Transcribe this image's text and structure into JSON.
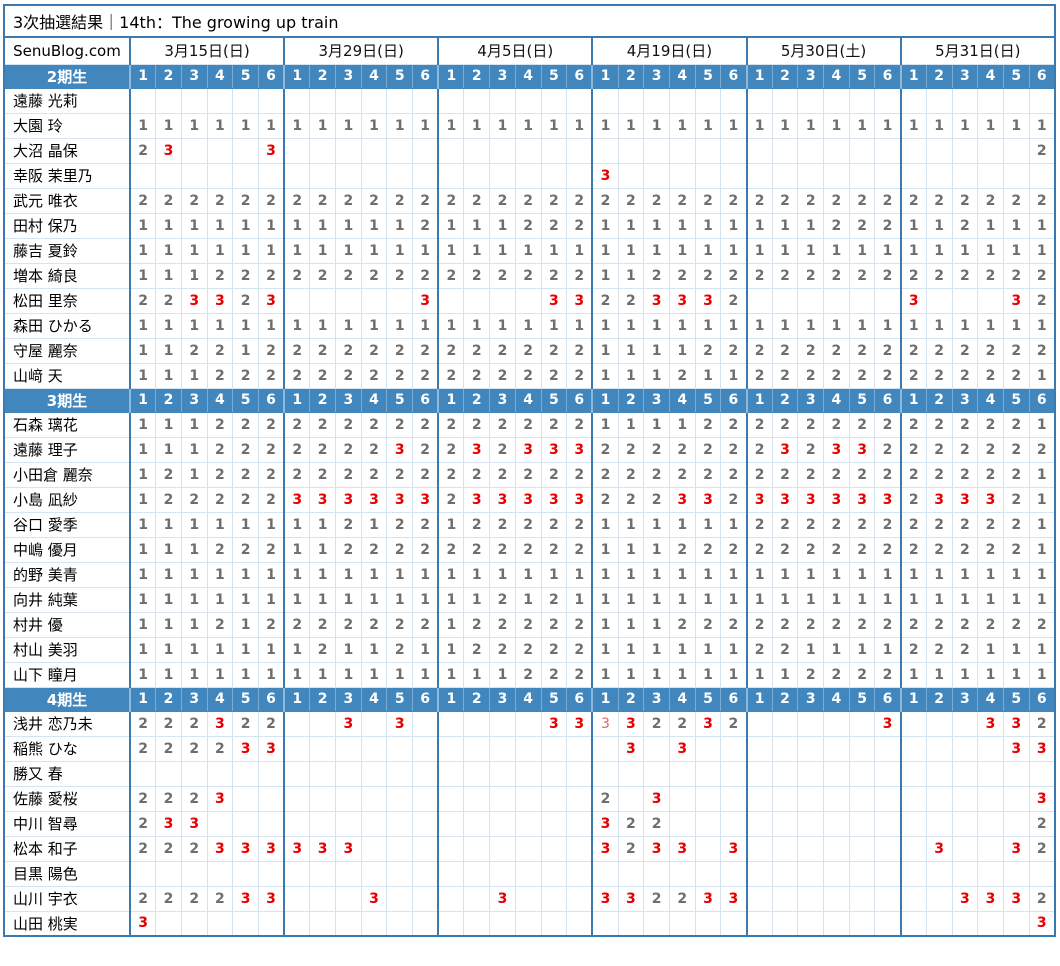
{
  "title": "3次抽選結果｜14th：The growing up train",
  "brand": "SenuBlog.com",
  "dates": [
    "3月15日(日)",
    "3月29日(日)",
    "4月5日(日)",
    "4月19日(日)",
    "5月30日(土)",
    "5月31日(日)"
  ],
  "slot_numbers": [
    "1",
    "2",
    "3",
    "4",
    "5",
    "6"
  ],
  "legend": {
    "empty": ".",
    "light_red_three": "L"
  },
  "colors": {
    "header_blue": "#4187be",
    "border_blue": "#3a7ab0",
    "gridline": "#d6e3f0",
    "number_gray": "#6e6e6e",
    "sold_out_red": "#e60000",
    "sold_out_red_light": "#e06666"
  },
  "sections": [
    {
      "label": "2期生",
      "members": [
        {
          "name": "遠藤 光莉",
          "v": [
            "......",
            "......",
            "......",
            "......",
            "......",
            "......"
          ]
        },
        {
          "name": "大園 玲",
          "v": [
            "111111",
            "111111",
            "111111",
            "111111",
            "111111",
            "111111"
          ]
        },
        {
          "name": "大沼 晶保",
          "v": [
            "23...3",
            "......",
            "......",
            "......",
            "......",
            ".....2"
          ]
        },
        {
          "name": "幸阪 茉里乃",
          "v": [
            "......",
            "......",
            "......",
            "3.....",
            "......",
            "......"
          ]
        },
        {
          "name": "武元 唯衣",
          "v": [
            "222222",
            "222222",
            "222222",
            "222222",
            "222222",
            "222222"
          ]
        },
        {
          "name": "田村 保乃",
          "v": [
            "111111",
            "111112",
            "111222",
            "111111",
            "111222",
            "112111"
          ]
        },
        {
          "name": "藤吉 夏鈴",
          "v": [
            "111111",
            "111111",
            "111111",
            "111111",
            "111111",
            "111111"
          ]
        },
        {
          "name": "増本 綺良",
          "v": [
            "111222",
            "222222",
            "222222",
            "112222",
            "222222",
            "222222"
          ]
        },
        {
          "name": "松田 里奈",
          "v": [
            "223323",
            ".....3",
            "....33",
            "223332",
            "......",
            "3...32"
          ]
        },
        {
          "name": "森田 ひかる",
          "v": [
            "111111",
            "111111",
            "111111",
            "111111",
            "111111",
            "111111"
          ]
        },
        {
          "name": "守屋 麗奈",
          "v": [
            "112212",
            "222222",
            "222222",
            "111122",
            "222222",
            "222222"
          ]
        },
        {
          "name": "山﨑 天",
          "v": [
            "111222",
            "222222",
            "222222",
            "111211",
            "222222",
            "222221"
          ]
        }
      ]
    },
    {
      "label": "3期生",
      "members": [
        {
          "name": "石森 璃花",
          "v": [
            "111222",
            "222222",
            "222222",
            "111122",
            "222222",
            "222221"
          ]
        },
        {
          "name": "遠藤 理子",
          "v": [
            "111222",
            "222232",
            "232333",
            "222222",
            "232332",
            "222222"
          ]
        },
        {
          "name": "小田倉 麗奈",
          "v": [
            "121222",
            "222222",
            "222222",
            "222222",
            "222222",
            "222221"
          ]
        },
        {
          "name": "小島 凪紗",
          "v": [
            "122222",
            "333333",
            "233333",
            "222332",
            "333333",
            "233321"
          ]
        },
        {
          "name": "谷口 愛季",
          "v": [
            "111111",
            "112122",
            "122222",
            "111111",
            "222222",
            "222221"
          ]
        },
        {
          "name": "中嶋 優月",
          "v": [
            "111222",
            "112222",
            "222222",
            "111222",
            "222222",
            "222221"
          ]
        },
        {
          "name": "的野 美青",
          "v": [
            "111111",
            "111111",
            "111111",
            "111111",
            "111111",
            "111111"
          ]
        },
        {
          "name": "向井 純葉",
          "v": [
            "111111",
            "111111",
            "112121",
            "111111",
            "111111",
            "111111"
          ]
        },
        {
          "name": "村井 優",
          "v": [
            "111212",
            "222222",
            "122222",
            "111222",
            "222222",
            "222222"
          ]
        },
        {
          "name": "村山 美羽",
          "v": [
            "111111",
            "121121",
            "122222",
            "111111",
            "221111",
            "222111"
          ]
        },
        {
          "name": "山下 瞳月",
          "v": [
            "111111",
            "111111",
            "111222",
            "111111",
            "112222",
            "111111"
          ]
        }
      ]
    },
    {
      "label": "4期生",
      "members": [
        {
          "name": "浅井 恋乃未",
          "v": [
            "222322",
            "..3.3.",
            "....33",
            "L32232",
            ".....3",
            "...332"
          ]
        },
        {
          "name": "稲熊 ひな",
          "v": [
            "222233",
            "......",
            "......",
            ".3.3..",
            "......",
            "....33"
          ]
        },
        {
          "name": "勝又 春",
          "v": [
            "......",
            "......",
            "......",
            "......",
            "......",
            "......"
          ]
        },
        {
          "name": "佐藤 愛桜",
          "v": [
            "2223..",
            "......",
            "......",
            "2.3...",
            "......",
            ".....3"
          ]
        },
        {
          "name": "中川 智尋",
          "v": [
            "233...",
            "......",
            "......",
            "322...",
            "......",
            ".....2"
          ]
        },
        {
          "name": "松本 和子",
          "v": [
            "222333",
            "333...",
            "......",
            "3233.3",
            "......",
            ".3..32"
          ]
        },
        {
          "name": "目黒 陽色",
          "v": [
            "......",
            "......",
            "......",
            "......",
            "......",
            "......"
          ]
        },
        {
          "name": "山川 宇衣",
          "v": [
            "222233",
            "...3..",
            "..3...",
            "332233",
            "......",
            "..3332"
          ]
        },
        {
          "name": "山田 桃実",
          "v": [
            "3.....",
            "......",
            "......",
            "......",
            "......",
            ".....3"
          ]
        }
      ]
    }
  ]
}
